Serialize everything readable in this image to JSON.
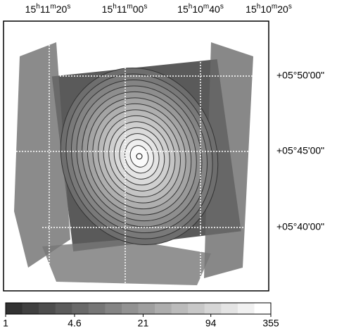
{
  "figure": {
    "ra_labels": [
      "15h11m20s",
      "15h11m00s",
      "15h10m40s",
      "15h10m20s"
    ],
    "dec_labels": [
      "+05°50'00\"",
      "+05°45'00\"",
      "+05°40'00\""
    ],
    "colorbar": {
      "scale": "log",
      "lim": [
        1,
        355
      ],
      "ticks": [
        1,
        4.6,
        21,
        94,
        355
      ]
    }
  }
}
